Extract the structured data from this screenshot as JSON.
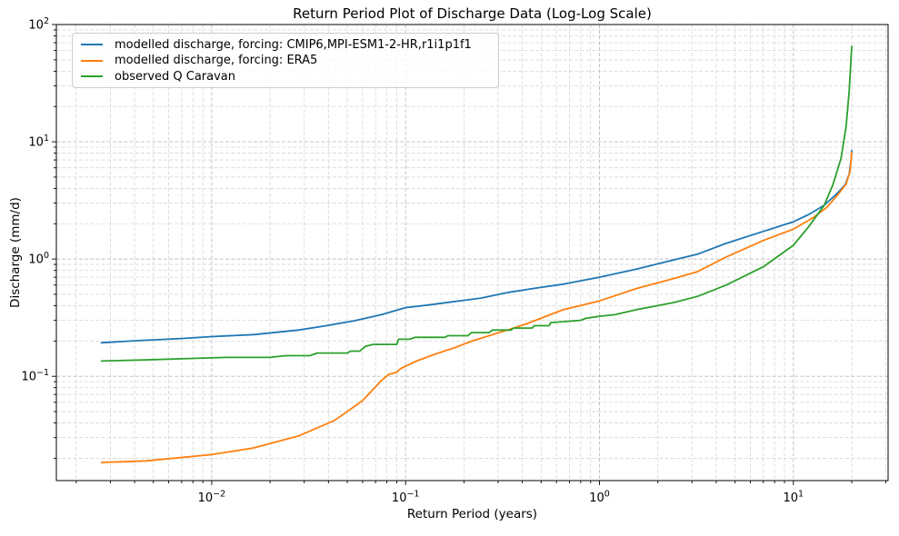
{
  "chart_data": {
    "type": "line",
    "title": "Return Period Plot of Discharge Data (Log-Log Scale)",
    "xlabel": "Return Period (years)",
    "ylabel": "Discharge (mm/d)",
    "xscale": "log",
    "yscale": "log",
    "xlim": [
      0.00158,
      30.8
    ],
    "ylim": [
      0.0129,
      100
    ],
    "x_major_ticks": [
      0.01,
      0.1,
      1,
      10
    ],
    "y_major_ticks": [
      100,
      10,
      1,
      0.1
    ],
    "x_tick_labels": [
      "10⁻²",
      "10⁻¹",
      "10⁰",
      "10¹"
    ],
    "y_tick_labels": [
      "10²",
      "10¹",
      "10⁰",
      "10⁻¹"
    ],
    "grid": {
      "which": "both",
      "linestyle": "dashed",
      "major_color": "#bdbdbd",
      "minor_color": "#d6d6d6"
    },
    "legend_position": "upper-left",
    "background": "#ffffff",
    "series": [
      {
        "name": "modelled discharge, forcing: CMIP6,MPI-ESM1-2-HR,r1i1p1f1",
        "color": "#1f77b4",
        "points": [
          [
            0.0027,
            0.193
          ],
          [
            0.004,
            0.201
          ],
          [
            0.007,
            0.21
          ],
          [
            0.01,
            0.218
          ],
          [
            0.0165,
            0.227
          ],
          [
            0.028,
            0.248
          ],
          [
            0.039,
            0.27
          ],
          [
            0.054,
            0.297
          ],
          [
            0.075,
            0.335
          ],
          [
            0.1,
            0.385
          ],
          [
            0.13,
            0.405
          ],
          [
            0.18,
            0.435
          ],
          [
            0.245,
            0.465
          ],
          [
            0.34,
            0.52
          ],
          [
            0.47,
            0.565
          ],
          [
            0.65,
            0.61
          ],
          [
            1.0,
            0.7
          ],
          [
            1.55,
            0.82
          ],
          [
            2.4,
            0.98
          ],
          [
            3.2,
            1.1
          ],
          [
            4.5,
            1.36
          ],
          [
            7.0,
            1.72
          ],
          [
            10.0,
            2.08
          ],
          [
            12.0,
            2.4
          ],
          [
            14.4,
            2.87
          ],
          [
            16.6,
            3.55
          ],
          [
            18.5,
            4.3
          ],
          [
            19.4,
            5.3
          ],
          [
            19.9,
            7.2
          ],
          [
            20.0,
            8.4
          ]
        ]
      },
      {
        "name": "modelled discharge, forcing: ERA5",
        "color": "#ff7f0e",
        "points": [
          [
            0.0027,
            0.0184
          ],
          [
            0.0046,
            0.019
          ],
          [
            0.01,
            0.0215
          ],
          [
            0.0165,
            0.0245
          ],
          [
            0.028,
            0.031
          ],
          [
            0.043,
            0.042
          ],
          [
            0.06,
            0.062
          ],
          [
            0.075,
            0.092
          ],
          [
            0.082,
            0.104
          ],
          [
            0.09,
            0.108
          ],
          [
            0.094,
            0.116
          ],
          [
            0.1,
            0.122
          ],
          [
            0.115,
            0.136
          ],
          [
            0.143,
            0.155
          ],
          [
            0.18,
            0.176
          ],
          [
            0.22,
            0.2
          ],
          [
            0.27,
            0.222
          ],
          [
            0.34,
            0.25
          ],
          [
            0.42,
            0.28
          ],
          [
            0.65,
            0.37
          ],
          [
            1.0,
            0.44
          ],
          [
            1.55,
            0.56
          ],
          [
            2.4,
            0.68
          ],
          [
            3.2,
            0.78
          ],
          [
            4.5,
            1.04
          ],
          [
            7.0,
            1.44
          ],
          [
            10.0,
            1.8
          ],
          [
            12.7,
            2.26
          ],
          [
            14.9,
            2.76
          ],
          [
            17.0,
            3.55
          ],
          [
            18.7,
            4.35
          ],
          [
            19.6,
            5.6
          ],
          [
            20.0,
            8.1
          ]
        ]
      },
      {
        "name": "observed Q Caravan",
        "color": "#2ca02c",
        "points": [
          [
            0.0027,
            0.135
          ],
          [
            0.0045,
            0.138
          ],
          [
            0.008,
            0.142
          ],
          [
            0.012,
            0.145
          ],
          [
            0.02,
            0.145
          ],
          [
            0.024,
            0.15
          ],
          [
            0.032,
            0.15
          ],
          [
            0.035,
            0.158
          ],
          [
            0.05,
            0.158
          ],
          [
            0.052,
            0.164
          ],
          [
            0.058,
            0.164
          ],
          [
            0.062,
            0.18
          ],
          [
            0.068,
            0.187
          ],
          [
            0.09,
            0.187
          ],
          [
            0.092,
            0.207
          ],
          [
            0.105,
            0.207
          ],
          [
            0.112,
            0.215
          ],
          [
            0.16,
            0.215
          ],
          [
            0.165,
            0.222
          ],
          [
            0.21,
            0.222
          ],
          [
            0.218,
            0.236
          ],
          [
            0.27,
            0.236
          ],
          [
            0.28,
            0.248
          ],
          [
            0.35,
            0.248
          ],
          [
            0.36,
            0.258
          ],
          [
            0.45,
            0.258
          ],
          [
            0.46,
            0.27
          ],
          [
            0.55,
            0.27
          ],
          [
            0.56,
            0.287
          ],
          [
            0.65,
            0.292
          ],
          [
            0.8,
            0.3
          ],
          [
            0.85,
            0.312
          ],
          [
            1.0,
            0.325
          ],
          [
            1.2,
            0.335
          ],
          [
            1.55,
            0.37
          ],
          [
            2.4,
            0.425
          ],
          [
            3.2,
            0.48
          ],
          [
            4.5,
            0.6
          ],
          [
            7.0,
            0.86
          ],
          [
            10.0,
            1.31
          ],
          [
            12.0,
            1.89
          ],
          [
            14.4,
            2.86
          ],
          [
            16.0,
            4.3
          ],
          [
            17.6,
            7.2
          ],
          [
            18.7,
            13.5
          ],
          [
            19.4,
            27.0
          ],
          [
            20.0,
            65.0
          ]
        ]
      }
    ]
  }
}
